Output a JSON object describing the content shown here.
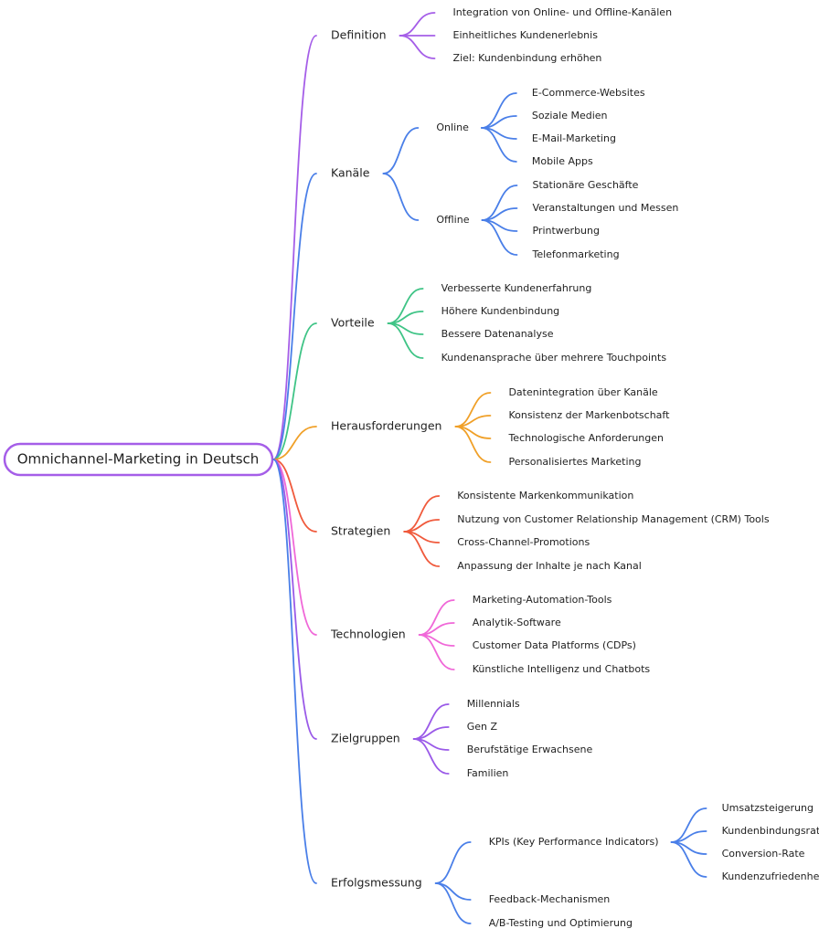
{
  "root": "Omnichannel-Marketing in Deutsch",
  "branches": [
    {
      "label": "Definition",
      "color": "#a55ee8",
      "children": [
        {
          "label": "Integration von Online- und Offline-Kanälen"
        },
        {
          "label": "Einheitliches Kundenerlebnis"
        },
        {
          "label": "Ziel: Kundenbindung erhöhen"
        }
      ]
    },
    {
      "label": "Kanäle",
      "color": "#4a7fe8",
      "children": [
        {
          "label": "Online",
          "children": [
            {
              "label": "E-Commerce-Websites"
            },
            {
              "label": "Soziale Medien"
            },
            {
              "label": "E-Mail-Marketing"
            },
            {
              "label": "Mobile Apps"
            }
          ]
        },
        {
          "label": "Offline",
          "children": [
            {
              "label": "Stationäre Geschäfte"
            },
            {
              "label": "Veranstaltungen und Messen"
            },
            {
              "label": "Printwerbung"
            },
            {
              "label": "Telefonmarketing"
            }
          ]
        }
      ]
    },
    {
      "label": "Vorteile",
      "color": "#3fc486",
      "children": [
        {
          "label": "Verbesserte Kundenerfahrung"
        },
        {
          "label": "Höhere Kundenbindung"
        },
        {
          "label": "Bessere Datenanalyse"
        },
        {
          "label": "Kundenansprache über mehrere Touchpoints"
        }
      ]
    },
    {
      "label": "Herausforderungen",
      "color": "#f0a028",
      "children": [
        {
          "label": "Datenintegration über Kanäle"
        },
        {
          "label": "Konsistenz der Markenbotschaft"
        },
        {
          "label": "Technologische Anforderungen"
        },
        {
          "label": "Personalisiertes Marketing"
        }
      ]
    },
    {
      "label": "Strategien",
      "color": "#f05a3c",
      "children": [
        {
          "label": "Konsistente Markenkommunikation"
        },
        {
          "label": "Nutzung von Customer Relationship Management (CRM) Tools"
        },
        {
          "label": "Cross-Channel-Promotions"
        },
        {
          "label": "Anpassung der Inhalte je nach Kanal"
        }
      ]
    },
    {
      "label": "Technologien",
      "color": "#f068d8",
      "children": [
        {
          "label": "Marketing-Automation-Tools"
        },
        {
          "label": "Analytik-Software"
        },
        {
          "label": "Customer Data Platforms (CDPs)"
        },
        {
          "label": "Künstliche Intelligenz und Chatbots"
        }
      ]
    },
    {
      "label": "Zielgruppen",
      "color": "#9a5ae8",
      "children": [
        {
          "label": "Millennials"
        },
        {
          "label": "Gen Z"
        },
        {
          "label": "Berufstätige Erwachsene"
        },
        {
          "label": "Familien"
        }
      ]
    },
    {
      "label": "Erfolgsmessung",
      "color": "#4a7fe8",
      "children": [
        {
          "label": "KPIs (Key Performance Indicators)",
          "children": [
            {
              "label": "Umsatzsteigerung"
            },
            {
              "label": "Kundenbindungsrate"
            },
            {
              "label": "Conversion-Rate"
            },
            {
              "label": "Kundenzufriedenheit"
            }
          ]
        },
        {
          "label": "Feedback-Mechanismen"
        },
        {
          "label": "A/B-Testing und Optimierung"
        }
      ]
    }
  ]
}
